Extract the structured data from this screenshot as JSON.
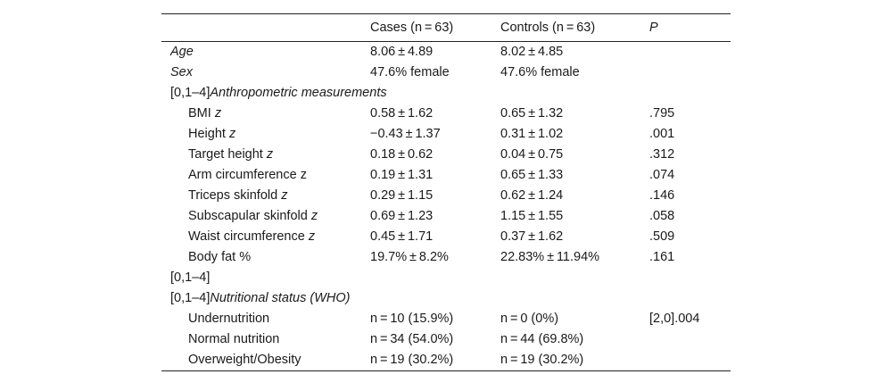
{
  "header": {
    "col_label": "",
    "cases": "Cases (n = 63)",
    "controls": "Controls (n = 63)",
    "p": "P"
  },
  "rows": [
    {
      "prefix": "",
      "label": "Age",
      "suffix": "",
      "cases": "8.06 ± 4.89",
      "controls": "8.02 ± 4.85",
      "p": ""
    },
    {
      "prefix": "",
      "label": "Sex",
      "suffix": "",
      "cases": "47.6% female",
      "controls": "47.6% female",
      "p": ""
    },
    {
      "prefix": "[0,1–4]",
      "label": "Anthropometric measurements",
      "suffix": "",
      "cases": "",
      "controls": "",
      "p": ""
    },
    {
      "prefix": "",
      "label": "BMI ",
      "suffix": "z",
      "cases": "0.58 ± 1.62",
      "controls": "0.65 ± 1.32",
      "p": ".795"
    },
    {
      "prefix": "",
      "label": "Height ",
      "suffix": "z",
      "cases": "−0.43 ± 1.37",
      "controls": "0.31 ± 1.02",
      "p": ".001"
    },
    {
      "prefix": "",
      "label": "Target height ",
      "suffix": "z",
      "cases": "0.18 ± 0.62",
      "controls": "0.04 ± 0.75",
      "p": ".312"
    },
    {
      "prefix": "",
      "label": "Arm circumference z",
      "suffix": "",
      "cases": "0.19 ± 1.31",
      "controls": "0.65 ± 1.33",
      "p": ".074"
    },
    {
      "prefix": "",
      "label": "Triceps skinfold ",
      "suffix": "z",
      "cases": "0.29 ± 1.15",
      "controls": "0.62 ± 1.24",
      "p": ".146"
    },
    {
      "prefix": "",
      "label": "Subscapular skinfold ",
      "suffix": "z",
      "cases": "0.69 ± 1.23",
      "controls": "1.15 ± 1.55",
      "p": ".058"
    },
    {
      "prefix": "",
      "label": "Waist circumference ",
      "suffix": "z",
      "cases": "0.45 ± 1.71",
      "controls": "0.37 ± 1.62",
      "p": ".509"
    },
    {
      "prefix": "",
      "label": "Body fat %",
      "suffix": "",
      "cases": "19.7% ± 8.2%",
      "controls": "22.83% ± 11.94%",
      "p": ".161"
    },
    {
      "prefix": "[0,1–4]",
      "label": "",
      "suffix": "",
      "cases": "",
      "controls": "",
      "p": ""
    },
    {
      "prefix": "[0,1–4]",
      "label": "Nutritional status (WHO)",
      "suffix": "",
      "cases": "",
      "controls": "",
      "p": ""
    },
    {
      "prefix": "",
      "label": "Undernutrition",
      "suffix": "",
      "cases": "n = 10 (15.9%)",
      "controls": "n = 0 (0%)",
      "p": "[2,0].004"
    },
    {
      "prefix": "",
      "label": "Normal nutrition",
      "suffix": "",
      "cases": "n = 34 (54.0%)",
      "controls": "n = 44 (69.8%)",
      "p": ""
    },
    {
      "prefix": "",
      "label": "Overweight/Obesity",
      "suffix": "",
      "cases": "n = 19 (30.2%)",
      "controls": "n = 19 (30.2%)",
      "p": ""
    }
  ]
}
